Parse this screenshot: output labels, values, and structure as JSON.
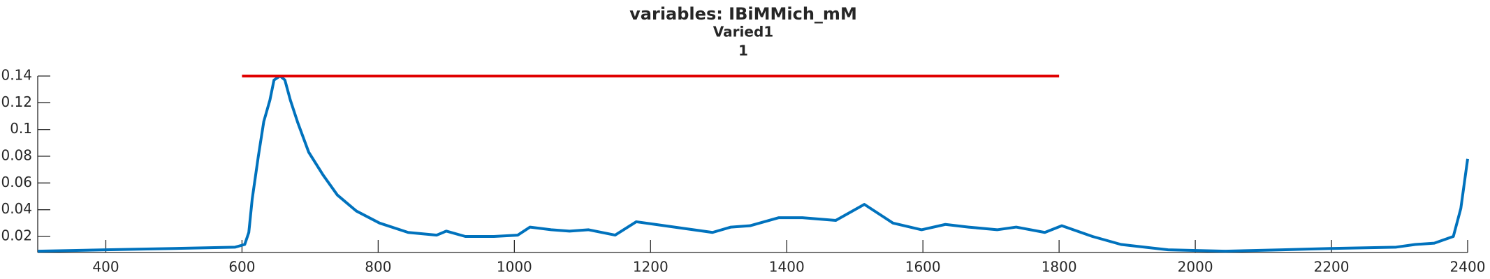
{
  "chart_data": {
    "type": "line",
    "title": "variables: IBiMMich_mM",
    "subtitle": "Varied1",
    "subtitle2": "1",
    "xlim": [
      300,
      2400
    ],
    "xticks": [
      400,
      600,
      800,
      1000,
      1200,
      1400,
      1600,
      1800,
      2000,
      2200,
      2400
    ],
    "ylim": [
      0.008,
      0.14
    ],
    "yticks": [
      0.02,
      0.04,
      0.06,
      0.08,
      0.1,
      0.12,
      0.14
    ],
    "series": [
      {
        "color": "#0072bd",
        "x": [
          300,
          400,
          500,
          590,
          604,
          610,
          615,
          624,
          632,
          641,
          647,
          656,
          663,
          671,
          682,
          698,
          719,
          740,
          768,
          802,
          844,
          886,
          900,
          928,
          970,
          1005,
          1023,
          1054,
          1081,
          1109,
          1148,
          1179,
          1207,
          1249,
          1291,
          1318,
          1346,
          1388,
          1423,
          1472,
          1514,
          1556,
          1598,
          1633,
          1667,
          1709,
          1737,
          1779,
          1804,
          1849,
          1891,
          1960,
          2044,
          2128,
          2198,
          2295,
          2323,
          2351,
          2379,
          2390,
          2400
        ],
        "values": [
          0.009,
          0.01,
          0.011,
          0.012,
          0.014,
          0.023,
          0.048,
          0.08,
          0.106,
          0.122,
          0.137,
          0.14,
          0.137,
          0.122,
          0.105,
          0.083,
          0.066,
          0.051,
          0.039,
          0.03,
          0.023,
          0.021,
          0.024,
          0.02,
          0.02,
          0.021,
          0.027,
          0.025,
          0.024,
          0.025,
          0.021,
          0.031,
          0.029,
          0.026,
          0.023,
          0.027,
          0.028,
          0.034,
          0.034,
          0.032,
          0.044,
          0.03,
          0.025,
          0.029,
          0.027,
          0.025,
          0.027,
          0.023,
          0.028,
          0.02,
          0.014,
          0.01,
          0.009,
          0.01,
          0.011,
          0.012,
          0.014,
          0.015,
          0.02,
          0.041,
          0.078
        ]
      },
      {
        "color": "#e00000",
        "x": [
          600,
          1800
        ],
        "values": [
          0.14,
          0.14
        ]
      }
    ]
  }
}
